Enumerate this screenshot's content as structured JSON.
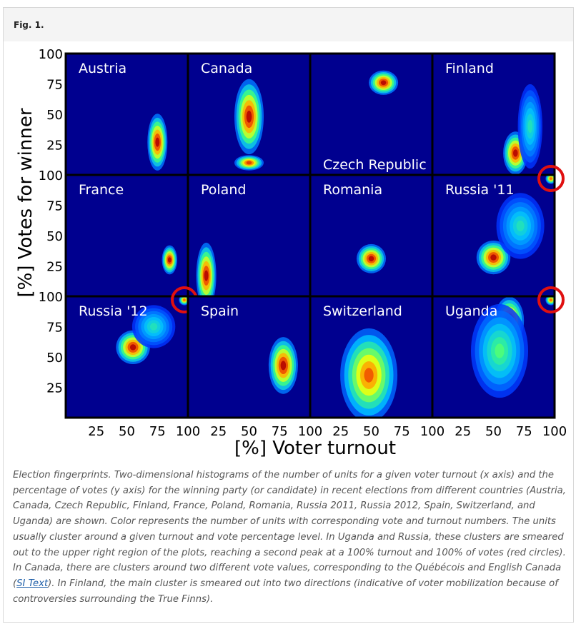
{
  "figure": {
    "label": "Fig. 1."
  },
  "chart_data": {
    "type": "heatmap",
    "xlabel": "[%] Voter turnout",
    "ylabel": "[%] Votes for winner",
    "xlim": [
      0,
      100
    ],
    "ylim": [
      0,
      100
    ],
    "x_ticks": [
      25,
      50,
      75,
      100
    ],
    "y_ticks": [
      25,
      50,
      75,
      100
    ],
    "colormap": [
      "#00008f",
      "#0033ff",
      "#00bfff",
      "#40ff80",
      "#ffff00",
      "#ff6000",
      "#b00000"
    ],
    "panels": [
      {
        "name": "Austria",
        "label_position": "top-left",
        "clusters": [
          {
            "turnout": 75,
            "votes": 27,
            "spread_turnout": 4,
            "spread_votes": 12,
            "intensity": 1.0
          }
        ]
      },
      {
        "name": "Canada",
        "label_position": "top-left",
        "clusters": [
          {
            "turnout": 50,
            "votes": 48,
            "spread_turnout": 6,
            "spread_votes": 16,
            "intensity": 1.0
          },
          {
            "turnout": 50,
            "votes": 10,
            "spread_turnout": 6,
            "spread_votes": 3,
            "intensity": 0.9
          }
        ]
      },
      {
        "name": "Czech Republic",
        "label_position": "bottom-left",
        "clusters": [
          {
            "turnout": 60,
            "votes": 76,
            "spread_turnout": 6,
            "spread_votes": 5,
            "intensity": 1.0
          }
        ]
      },
      {
        "name": "Finland",
        "label_position": "top-left",
        "clusters": [
          {
            "turnout": 68,
            "votes": 18,
            "spread_turnout": 5,
            "spread_votes": 9,
            "intensity": 1.0
          },
          {
            "turnout": 80,
            "votes": 40,
            "spread_turnout": 5,
            "spread_votes": 18,
            "intensity": 0.35
          }
        ]
      },
      {
        "name": "France",
        "label_position": "top-left",
        "clusters": [
          {
            "turnout": 85,
            "votes": 30,
            "spread_turnout": 3,
            "spread_votes": 6,
            "intensity": 1.0
          }
        ]
      },
      {
        "name": "Poland",
        "label_position": "top-left",
        "clusters": [
          {
            "turnout": 15,
            "votes": 17,
            "spread_turnout": 4,
            "spread_votes": 14,
            "intensity": 1.0
          }
        ]
      },
      {
        "name": "Romania",
        "label_position": "top-left",
        "clusters": [
          {
            "turnout": 50,
            "votes": 31,
            "spread_turnout": 6,
            "spread_votes": 6,
            "intensity": 1.0
          }
        ]
      },
      {
        "name": "Russia '11",
        "label_position": "top-left",
        "clusters": [
          {
            "turnout": 50,
            "votes": 32,
            "spread_turnout": 7,
            "spread_votes": 7,
            "intensity": 1.0
          },
          {
            "turnout": 72,
            "votes": 58,
            "spread_turnout": 10,
            "spread_votes": 14,
            "intensity": 0.35
          },
          {
            "turnout": 97,
            "votes": 97,
            "spread_turnout": 2,
            "spread_votes": 2,
            "intensity": 0.8
          }
        ],
        "highlight": {
          "turnout": 100,
          "votes": 100
        }
      },
      {
        "name": "Russia '12",
        "label_position": "top-left",
        "clusters": [
          {
            "turnout": 55,
            "votes": 58,
            "spread_turnout": 7,
            "spread_votes": 7,
            "intensity": 1.0
          },
          {
            "turnout": 72,
            "votes": 75,
            "spread_turnout": 9,
            "spread_votes": 9,
            "intensity": 0.35
          },
          {
            "turnout": 97,
            "votes": 97,
            "spread_turnout": 2,
            "spread_votes": 2,
            "intensity": 0.8
          }
        ],
        "highlight": {
          "turnout": 100,
          "votes": 100
        }
      },
      {
        "name": "Spain",
        "label_position": "top-left",
        "clusters": [
          {
            "turnout": 78,
            "votes": 43,
            "spread_turnout": 6,
            "spread_votes": 12,
            "intensity": 1.0
          }
        ]
      },
      {
        "name": "Switzerland",
        "label_position": "top-left",
        "clusters": [
          {
            "turnout": 48,
            "votes": 35,
            "spread_turnout": 12,
            "spread_votes": 20,
            "intensity": 0.85
          }
        ]
      },
      {
        "name": "Uganda",
        "label_position": "top-left",
        "clusters": [
          {
            "turnout": 63,
            "votes": 80,
            "spread_turnout": 6,
            "spread_votes": 10,
            "intensity": 1.0
          },
          {
            "turnout": 55,
            "votes": 55,
            "spread_turnout": 12,
            "spread_votes": 20,
            "intensity": 0.45
          },
          {
            "turnout": 97,
            "votes": 97,
            "spread_turnout": 2,
            "spread_votes": 2,
            "intensity": 0.8
          }
        ],
        "highlight": {
          "turnout": 100,
          "votes": 100
        }
      }
    ]
  },
  "caption": {
    "text_before_link": "Election fingerprints. Two-dimensional histograms of the number of units for a given voter turnout (x axis) and the percentage of votes (y axis) for the winning party (or candidate) in recent elections from different countries (Austria, Canada, Czech Republic, Finland, France, Poland, Romania, Russia 2011, Russia 2012, Spain, Switzerland, and Uganda) are shown. Color represents the number of units with corresponding vote and turnout numbers. The units usually cluster around a given turnout and vote percentage level. In Uganda and Russia, these clusters are smeared out to the upper right region of the plots, reaching a second peak at a 100% turnout and 100% of votes (red circles). In Canada, there are clusters around two different vote values, corresponding to the Québécois and English Canada (",
    "link_text": "SI Text",
    "text_after_link": "). In Finland, the main cluster is smeared out into two directions (indicative of voter mobilization because of controversies surrounding the True Finns)."
  }
}
